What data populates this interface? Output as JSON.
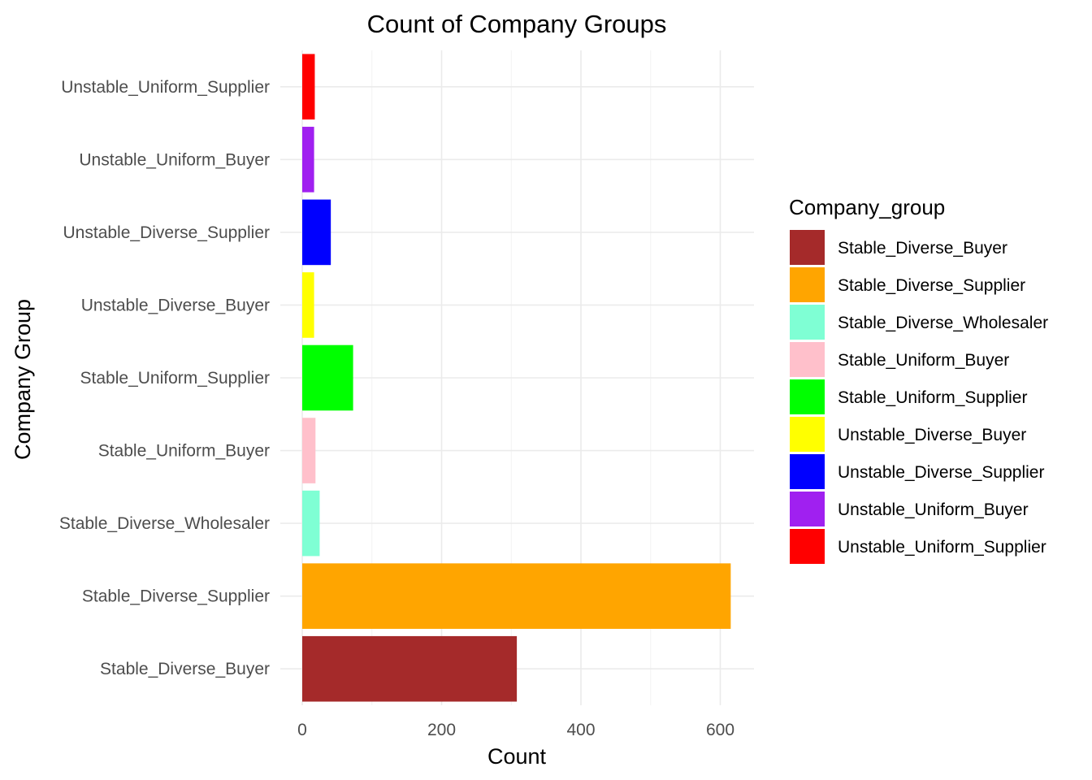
{
  "chart_data": {
    "type": "bar",
    "orientation": "horizontal",
    "title": "Count of Company Groups",
    "xlabel": "Count",
    "ylabel": "Company Group",
    "xlim": [
      0,
      645
    ],
    "x_ticks": [
      0,
      200,
      400,
      600
    ],
    "grid": true,
    "legend_position": "right",
    "legend_title": "Company_group",
    "categories": [
      "Stable_Diverse_Buyer",
      "Stable_Diverse_Supplier",
      "Stable_Diverse_Wholesaler",
      "Stable_Uniform_Buyer",
      "Stable_Uniform_Supplier",
      "Unstable_Diverse_Buyer",
      "Unstable_Diverse_Supplier",
      "Unstable_Uniform_Buyer",
      "Unstable_Uniform_Supplier"
    ],
    "values": [
      308,
      615,
      25,
      19,
      73,
      17,
      41,
      17,
      18
    ],
    "colors": [
      "#A52A2A",
      "#FFA500",
      "#7FFFD4",
      "#FFC0CB",
      "#00FF00",
      "#FFFF00",
      "#0000FF",
      "#A020F0",
      "#FF0000"
    ]
  }
}
